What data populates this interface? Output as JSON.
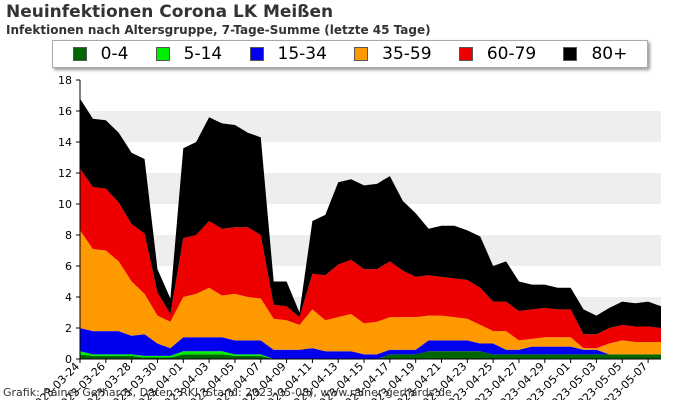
{
  "page": {
    "title": "Neuinfektionen Corona LK Meißen",
    "subtitle": "Infektionen nach Altersgruppe, 7-Tage-Summe (letzte 45 Tage)",
    "credit": "Grafik: Rainer Gerhards, Daten: RKI (Stand: 2023-05-08), www.rainer-gerhards.de"
  },
  "chart_data": {
    "type": "area",
    "stacked": true,
    "title": "Neuinfektionen Corona LK Meißen",
    "subtitle": "Infektionen nach Altersgruppe, 7-Tage-Summe (letzte 45 Tage)",
    "ylim": [
      0,
      18
    ],
    "yticks": [
      0,
      2,
      4,
      6,
      8,
      10,
      12,
      14,
      16,
      18
    ],
    "grid": "horizontal bands",
    "legend": "top",
    "x": [
      "2023-03-24",
      "2023-03-25",
      "2023-03-26",
      "2023-03-27",
      "2023-03-28",
      "2023-03-29",
      "2023-03-30",
      "2023-03-31",
      "2023-04-01",
      "2023-04-02",
      "2023-04-03",
      "2023-04-04",
      "2023-04-05",
      "2023-04-06",
      "2023-04-07",
      "2023-04-08",
      "2023-04-09",
      "2023-04-10",
      "2023-04-11",
      "2023-04-12",
      "2023-04-13",
      "2023-04-14",
      "2023-04-15",
      "2023-04-16",
      "2023-04-17",
      "2023-04-18",
      "2023-04-19",
      "2023-04-20",
      "2023-04-21",
      "2023-04-22",
      "2023-04-23",
      "2023-04-24",
      "2023-04-25",
      "2023-04-26",
      "2023-04-27",
      "2023-04-28",
      "2023-04-29",
      "2023-04-30",
      "2023-05-01",
      "2023-05-02",
      "2023-05-03",
      "2023-05-04",
      "2023-05-05",
      "2023-05-06",
      "2023-05-07",
      "2023-05-08"
    ],
    "xtick_labels": [
      "2023-03-24",
      "2023-03-26",
      "2023-03-28",
      "2023-03-30",
      "2023-04-01",
      "2023-04-03",
      "2023-04-05",
      "2023-04-07",
      "2023-04-09",
      "2023-04-11",
      "2023-04-13",
      "2023-04-15",
      "2023-04-17",
      "2023-04-19",
      "2023-04-21",
      "2023-04-23",
      "2023-04-25",
      "2023-04-27",
      "2023-04-29",
      "2023-05-01",
      "2023-05-03",
      "2023-05-05",
      "2023-05-07"
    ],
    "series": [
      {
        "name": "0-4",
        "color": "#006600",
        "values": [
          0.3,
          0.2,
          0.2,
          0.2,
          0.2,
          0.1,
          0.1,
          0.1,
          0.3,
          0.3,
          0.3,
          0.3,
          0.2,
          0.2,
          0.2,
          0.0,
          0.0,
          0.0,
          0.0,
          0.0,
          0.0,
          0.0,
          0.0,
          0.0,
          0.3,
          0.3,
          0.3,
          0.5,
          0.5,
          0.5,
          0.5,
          0.5,
          0.3,
          0.3,
          0.3,
          0.3,
          0.3,
          0.3,
          0.3,
          0.3,
          0.3,
          0.3,
          0.3,
          0.3,
          0.3,
          0.3
        ]
      },
      {
        "name": "5-14",
        "color": "#00ee00",
        "values": [
          0.2,
          0.1,
          0.1,
          0.1,
          0.1,
          0.1,
          0.1,
          0.1,
          0.2,
          0.2,
          0.2,
          0.2,
          0.1,
          0.1,
          0.1,
          0.0,
          0.0,
          0.0,
          0.0,
          0.0,
          0.0,
          0.0,
          0.0,
          0.0,
          0.0,
          0.0,
          0.0,
          0.0,
          0.0,
          0.0,
          0.0,
          0.0,
          0.0,
          0.0,
          0.0,
          0.0,
          0.0,
          0.0,
          0.0,
          0.0,
          0.0,
          0.0,
          0.0,
          0.0,
          0.0,
          0.0
        ]
      },
      {
        "name": "15-34",
        "color": "#0000ee",
        "values": [
          1.5,
          1.5,
          1.5,
          1.5,
          1.2,
          1.4,
          0.8,
          0.5,
          0.9,
          0.9,
          0.9,
          0.9,
          0.9,
          0.9,
          0.9,
          0.6,
          0.6,
          0.6,
          0.7,
          0.5,
          0.5,
          0.5,
          0.3,
          0.3,
          0.3,
          0.3,
          0.3,
          0.7,
          0.7,
          0.7,
          0.7,
          0.5,
          0.7,
          0.3,
          0.3,
          0.5,
          0.5,
          0.5,
          0.5,
          0.3,
          0.3,
          0.0,
          0.0,
          0.0,
          0.0,
          0.0
        ]
      },
      {
        "name": "35-59",
        "color": "#ff9900",
        "values": [
          6.3,
          5.3,
          5.2,
          4.5,
          3.5,
          2.6,
          1.8,
          1.7,
          2.6,
          2.8,
          3.2,
          2.7,
          3.0,
          2.8,
          2.7,
          2.0,
          1.9,
          1.6,
          2.5,
          2.0,
          2.2,
          2.4,
          2.0,
          2.1,
          2.1,
          2.1,
          2.1,
          1.6,
          1.6,
          1.5,
          1.4,
          1.2,
          0.8,
          1.2,
          0.6,
          0.5,
          0.6,
          0.6,
          0.6,
          0.1,
          0.1,
          0.7,
          0.9,
          0.8,
          0.8,
          0.8
        ]
      },
      {
        "name": "60-79",
        "color": "#ee0000",
        "values": [
          4.0,
          4.0,
          4.0,
          3.8,
          3.7,
          3.9,
          1.5,
          0.5,
          3.8,
          3.8,
          4.3,
          4.3,
          4.3,
          4.5,
          4.1,
          0.9,
          0.9,
          0.5,
          2.3,
          2.9,
          3.4,
          3.5,
          3.5,
          3.4,
          3.6,
          3.0,
          2.6,
          2.6,
          2.5,
          2.5,
          2.5,
          2.4,
          1.9,
          1.9,
          1.9,
          1.9,
          1.9,
          1.8,
          1.8,
          0.9,
          0.9,
          1.0,
          1.0,
          1.0,
          1.0,
          0.9
        ]
      },
      {
        "name": "80+",
        "color": "#000000",
        "values": [
          4.5,
          4.4,
          4.4,
          4.5,
          4.6,
          4.8,
          1.5,
          1.0,
          5.8,
          6.0,
          6.7,
          6.8,
          6.6,
          6.1,
          6.3,
          1.5,
          1.6,
          0.3,
          3.4,
          3.9,
          5.3,
          5.2,
          5.4,
          5.5,
          5.5,
          4.5,
          4.1,
          3.0,
          3.3,
          3.4,
          3.2,
          3.3,
          2.3,
          2.6,
          1.9,
          1.6,
          1.5,
          1.4,
          1.4,
          1.6,
          1.2,
          1.3,
          1.5,
          1.5,
          1.6,
          1.4
        ]
      }
    ]
  }
}
